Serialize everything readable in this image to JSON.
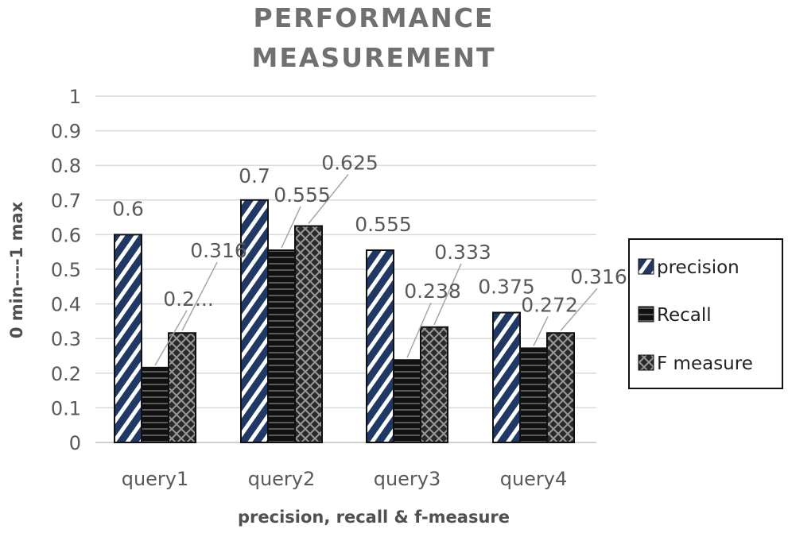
{
  "chart_data": {
    "type": "bar",
    "title_lines": [
      "PERFORMANCE",
      "MEASUREMENT"
    ],
    "xlabel": "precision, recall & f-measure",
    "ylabel": "0 min----1 max",
    "ylim": [
      0,
      1
    ],
    "yticks": [
      "0",
      "0.1",
      "0.2",
      "0.3",
      "0.4",
      "0.5",
      "0.6",
      "0.7",
      "0.8",
      "0.9",
      "1"
    ],
    "grid": true,
    "legend_position": "right",
    "categories": [
      "query1",
      "query2",
      "query3",
      "query4"
    ],
    "series": [
      {
        "name": "precision",
        "values": [
          0.6,
          0.7,
          0.555,
          0.375
        ],
        "labels": [
          "0.6",
          "0.7",
          "0.555",
          "0.375"
        ]
      },
      {
        "name": "Recall",
        "values": [
          0.216,
          0.555,
          0.238,
          0.272
        ],
        "labels": [
          "0.2...",
          "0.555",
          "0.238",
          "0.272"
        ]
      },
      {
        "name": "F measure",
        "values": [
          0.316,
          0.625,
          0.333,
          0.316
        ],
        "labels": [
          "0.316",
          "0.625",
          "0.333",
          "0.316"
        ]
      }
    ],
    "colors": {
      "precision_fill": "#1f3864",
      "precision_stripe": "#ffffff",
      "recall_fill": "#111111",
      "recall_stripe": "#555555",
      "fmeasure_fill": "#2a2a2a",
      "fmeasure_stripe": "#9a9a9a",
      "grid": "#d9d9d9",
      "leader": "#a6a6a6"
    }
  }
}
